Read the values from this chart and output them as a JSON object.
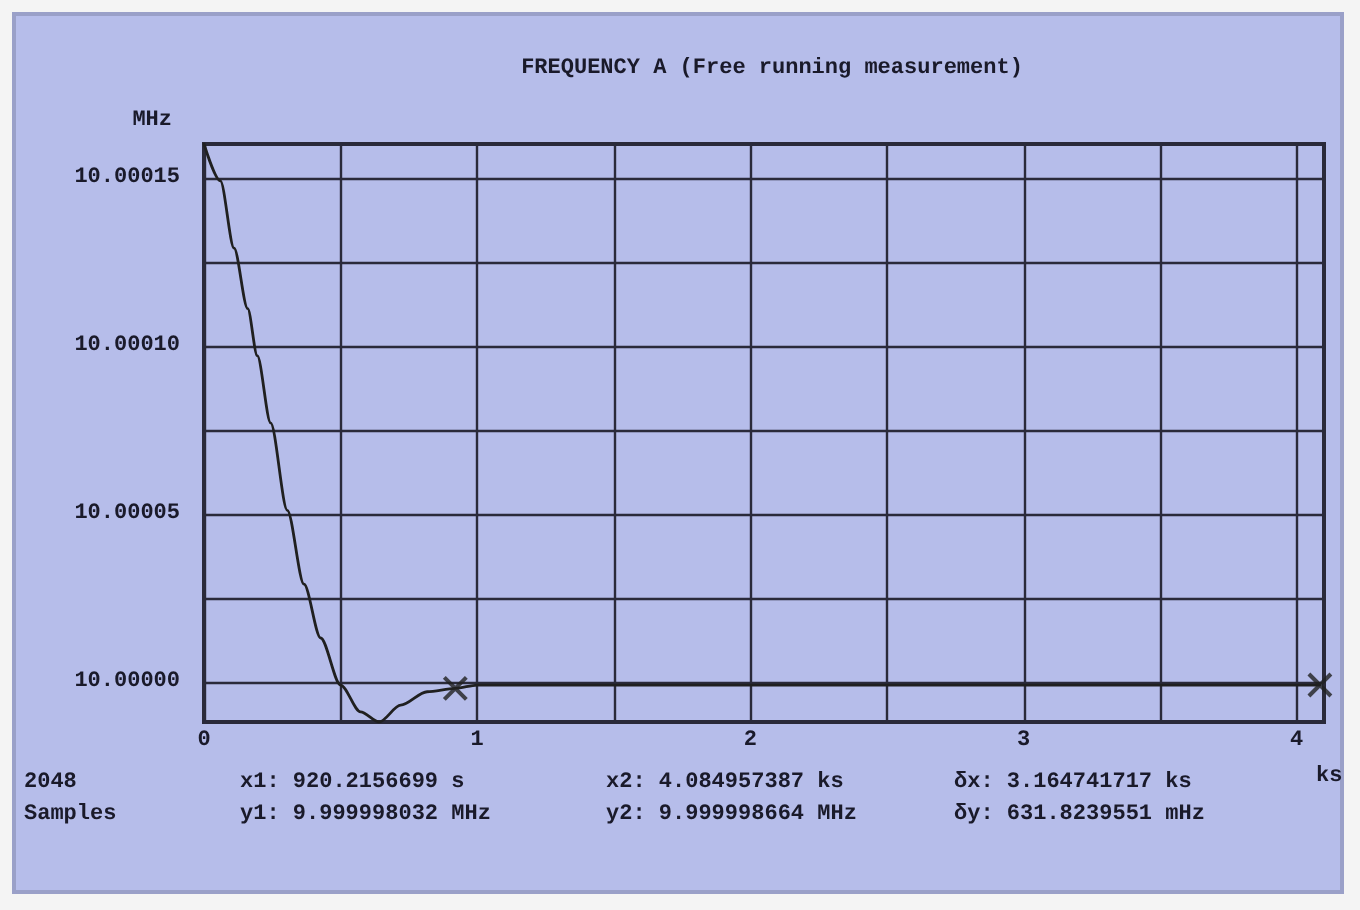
{
  "chart_data": {
    "type": "line",
    "title": "FREQUENCY A (Free running measurement)",
    "xlabel": "ks",
    "ylabel": "MHz",
    "xlim": [
      0,
      4.1
    ],
    "xticks": [
      0,
      {
        "value": 0.5,
        "label": null
      },
      1,
      {
        "value": 1.5,
        "label": null
      },
      2,
      {
        "value": 2.5,
        "label": null
      },
      3,
      {
        "value": 3.5,
        "label": null
      },
      4
    ],
    "ylim": [
      9.999988,
      10.00016
    ],
    "yticks": [
      {
        "value": 10,
        "label": "10.00000"
      },
      {
        "value": 10.000025,
        "label": null
      },
      {
        "value": 10.00005,
        "label": "10.00005"
      },
      {
        "value": 10.000075,
        "label": null
      },
      {
        "value": 10.0001,
        "label": "10.00010"
      },
      {
        "value": 10.000125,
        "label": null
      },
      {
        "value": 10.00015,
        "label": "10.00015"
      }
    ],
    "grid": true,
    "marker": "none",
    "line_style": "solid",
    "series": [
      {
        "color": "#202020",
        "x": [
          0,
          0.06,
          0.11,
          0.16,
          0.195,
          0.244,
          0.305,
          0.366,
          0.427,
          0.5,
          0.573,
          0.641,
          0.72,
          0.817,
          0.92,
          1,
          2,
          3,
          4,
          4.085
        ],
        "values": [
          10.00016,
          10.000149,
          10.000129,
          10.000111,
          10.000097,
          10.000077,
          10.000051,
          10.000029,
          10.000013,
          9.999999,
          9.999991,
          9.999988,
          9.999993,
          9.999997,
          9.999998,
          9.999999,
          9.999999,
          9.999999,
          9.999999,
          9.999999
        ]
      },
      {
        "type": "scatter",
        "color": "#202020",
        "marker": "cross",
        "x": [
          0.92,
          4.085
        ],
        "values": [
          9.999998,
          9.999999
        ]
      }
    ],
    "annotations": [
      "2048",
      "Samples",
      "x1: 920.2156699 s",
      "y1: 9.999998032 MHz",
      "x2: 4.084957387 ks",
      "y2: 9.999998664 MHz",
      "δx: 3.164741717 ks",
      "δy: 631.8239551 mHz"
    ]
  }
}
